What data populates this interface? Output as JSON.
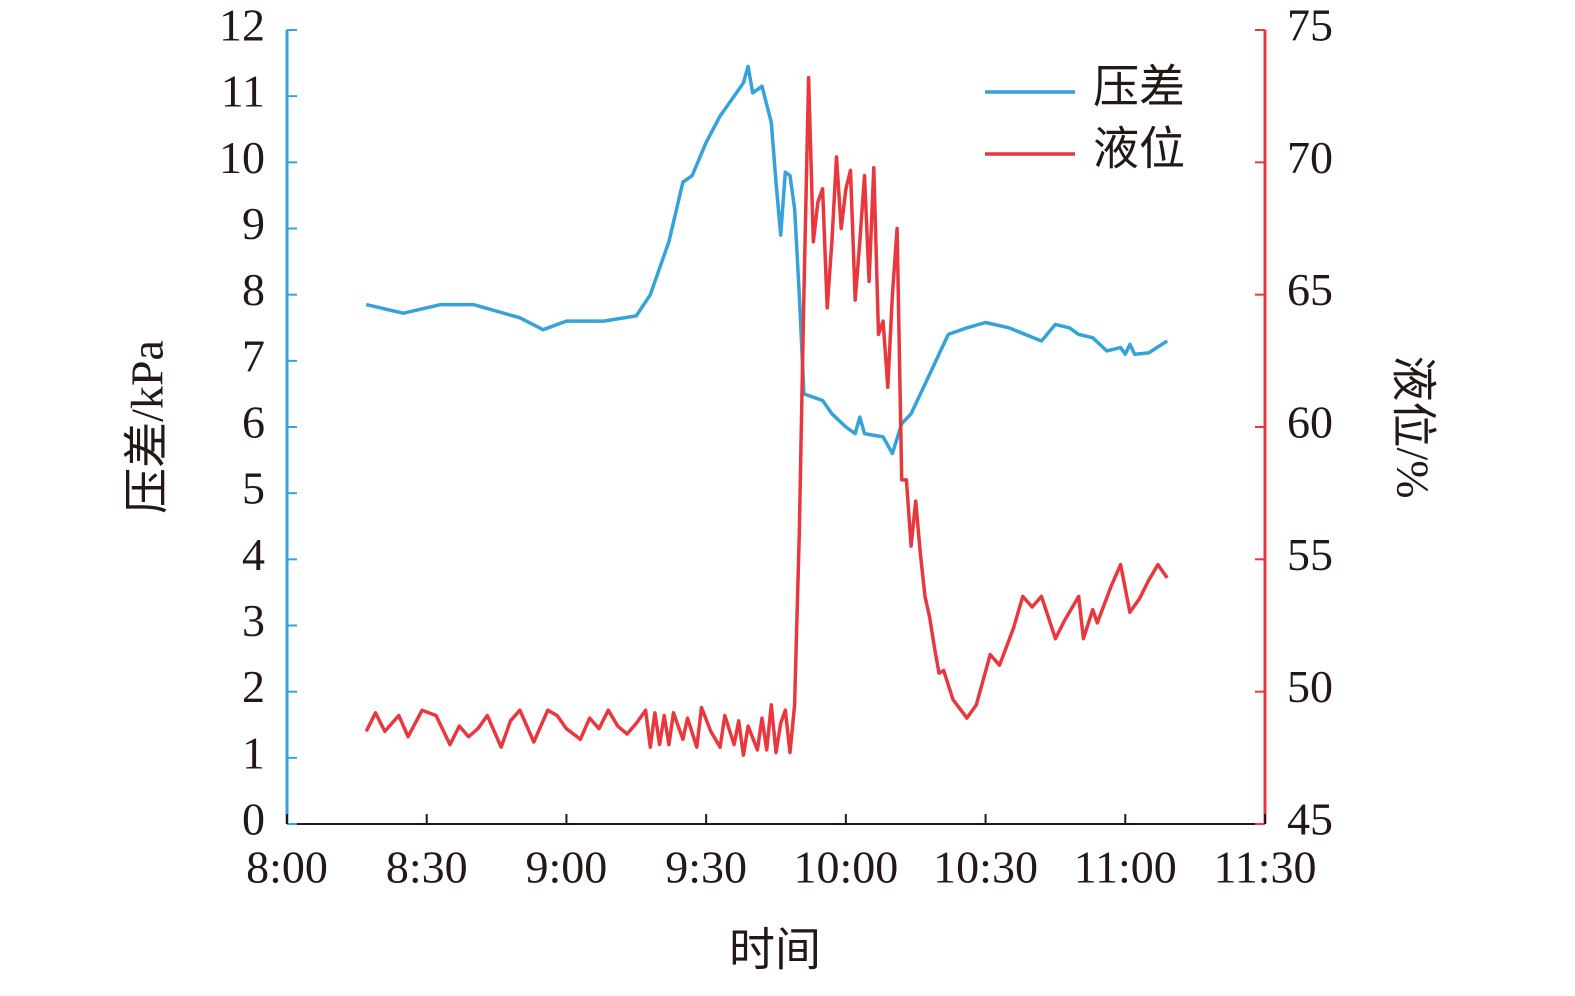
{
  "chart_data": {
    "type": "line",
    "xlabel": "时间",
    "ylabel": "压差/kPa",
    "y2label": "液位/%",
    "xlim": [
      "8:00",
      "11:30"
    ],
    "xticks": [
      "8:00",
      "8:30",
      "9:00",
      "9:30",
      "10:00",
      "10:30",
      "11:00",
      "11:30"
    ],
    "ylim": [
      0,
      12
    ],
    "yticks": [
      0,
      1,
      2,
      3,
      4,
      5,
      6,
      7,
      8,
      9,
      10,
      11,
      12
    ],
    "y2lim": [
      45,
      75
    ],
    "y2ticks": [
      45,
      50,
      55,
      60,
      65,
      70,
      75
    ],
    "legend": "upper right",
    "grid": false,
    "series": [
      {
        "name": "压差",
        "color": "#35a2d9",
        "x": [
          "8:17",
          "8:25",
          "8:33",
          "8:40",
          "8:50",
          "8:55",
          "9:00",
          "9:08",
          "9:15",
          "9:18",
          "9:22",
          "9:25",
          "9:27",
          "9:30",
          "9:33",
          "9:36",
          "9:38",
          "9:39",
          "9:40",
          "9:42",
          "9:44",
          "9:45",
          "9:46",
          "9:47",
          "9:48",
          "9:49",
          "9:50",
          "9:51",
          "9:55",
          "9:57",
          "10:00",
          "10:02",
          "10:03",
          "10:04",
          "10:08",
          "10:10",
          "10:12",
          "10:14",
          "10:18",
          "10:22",
          "10:26",
          "10:30",
          "10:35",
          "10:42",
          "10:45",
          "10:48",
          "10:50",
          "10:53",
          "10:56",
          "10:59",
          "11:00",
          "11:01",
          "11:02",
          "11:05",
          "11:09"
        ],
        "values": [
          7.85,
          7.72,
          7.85,
          7.85,
          7.65,
          7.47,
          7.6,
          7.6,
          7.68,
          8.0,
          8.8,
          9.7,
          9.8,
          10.3,
          10.7,
          11.0,
          11.2,
          11.45,
          11.05,
          11.15,
          10.6,
          9.7,
          8.9,
          9.85,
          9.8,
          9.3,
          8.0,
          6.5,
          6.4,
          6.2,
          6.0,
          5.9,
          6.15,
          5.9,
          5.85,
          5.6,
          6.05,
          6.2,
          6.8,
          7.4,
          7.5,
          7.58,
          7.5,
          7.3,
          7.55,
          7.5,
          7.4,
          7.35,
          7.15,
          7.2,
          7.1,
          7.25,
          7.1,
          7.12,
          7.3
        ]
      },
      {
        "name": "液位",
        "color": "#e8383d",
        "axis": "y2",
        "x": [
          "8:17",
          "8:19",
          "8:21",
          "8:24",
          "8:26",
          "8:29",
          "8:32",
          "8:35",
          "8:37",
          "8:39",
          "8:41",
          "8:43",
          "8:46",
          "8:48",
          "8:50",
          "8:53",
          "8:56",
          "8:58",
          "9:00",
          "9:03",
          "9:05",
          "9:07",
          "9:09",
          "9:11",
          "9:13",
          "9:15",
          "9:17",
          "9:18",
          "9:19",
          "9:20",
          "9:21",
          "9:22",
          "9:23",
          "9:25",
          "9:26",
          "9:28",
          "9:29",
          "9:31",
          "9:33",
          "9:34",
          "9:36",
          "9:37",
          "9:38",
          "9:39",
          "9:41",
          "9:42",
          "9:43",
          "9:44",
          "9:45",
          "9:46",
          "9:47",
          "9:48",
          "9:49",
          "9:50",
          "9:51",
          "9:52",
          "9:53",
          "9:54",
          "9:55",
          "9:56",
          "9:57",
          "9:58",
          "9:59",
          "10:00",
          "10:01",
          "10:02",
          "10:03",
          "10:04",
          "10:05",
          "10:06",
          "10:07",
          "10:08",
          "10:09",
          "10:10",
          "10:11",
          "10:12",
          "10:13",
          "10:14",
          "10:15",
          "10:16",
          "10:17",
          "10:18",
          "10:19",
          "10:20",
          "10:21",
          "10:23",
          "10:26",
          "10:28",
          "10:31",
          "10:33",
          "10:36",
          "10:38",
          "10:40",
          "10:42",
          "10:45",
          "10:47",
          "10:50",
          "10:51",
          "10:53",
          "10:54",
          "10:57",
          "10:59",
          "11:01",
          "11:03",
          "11:05",
          "11:07",
          "11:09"
        ],
        "values": [
          48.5,
          49.2,
          48.5,
          49.1,
          48.3,
          49.3,
          49.1,
          48,
          48.7,
          48.3,
          48.6,
          49.1,
          47.9,
          48.9,
          49.3,
          48.1,
          49.3,
          49.1,
          48.6,
          48.2,
          49.0,
          48.6,
          49.3,
          48.7,
          48.4,
          48.8,
          49.3,
          47.9,
          49.2,
          48.0,
          49.1,
          48.0,
          49.2,
          48.2,
          49.0,
          47.9,
          49.4,
          48.5,
          47.9,
          49.1,
          48.0,
          48.9,
          47.6,
          48.7,
          47.8,
          49.0,
          47.8,
          49.5,
          47.7,
          48.8,
          49.3,
          47.7,
          49.5,
          56,
          65,
          73.2,
          67,
          68.5,
          69,
          64.5,
          67,
          70.2,
          67.5,
          69,
          69.7,
          64.8,
          67,
          69.5,
          65.5,
          69.8,
          63.5,
          64,
          61.5,
          65,
          67.5,
          58,
          58,
          55.5,
          57.2,
          55.2,
          53.6,
          52.8,
          51.7,
          50.7,
          50.8,
          49.7,
          49.0,
          49.5,
          51.4,
          51,
          52.4,
          53.6,
          53.2,
          53.6,
          52.0,
          52.7,
          53.6,
          52.0,
          53.1,
          52.6,
          54.0,
          54.8,
          53.0,
          53.5,
          54.2,
          54.8,
          54.3
        ]
      }
    ]
  }
}
